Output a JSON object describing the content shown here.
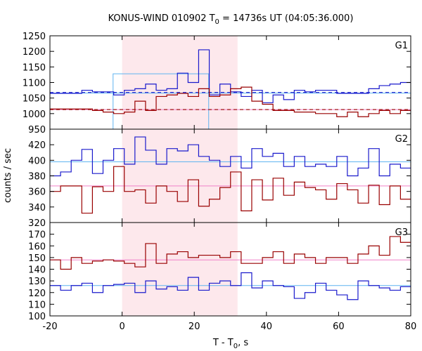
{
  "chart_data": {
    "type": "line",
    "style": "step",
    "title": "KONUS-WIND 010902 T",
    "title_sub": "0",
    "title_rest": " = 14736s UT (04:05:36.000)",
    "xlabel": "T - T",
    "xlabel_sub": "0",
    "xlabel_rest": ", s",
    "ylabel": "counts / sec",
    "xlim": [
      -20,
      80
    ],
    "xticks": [
      -20,
      0,
      20,
      40,
      60,
      80
    ],
    "highlight_interval": [
      0,
      32
    ],
    "colors": {
      "series_blue": "#1a1acc",
      "series_red": "#990000",
      "background_cyan": "#5fb4f0",
      "background_pink": "#f080c8",
      "highlight": "#fde8ec",
      "g1_window": "#5fb4f0"
    },
    "panels": [
      {
        "label": "G1",
        "ylim": [
          950,
          1250
        ],
        "yticks": [
          950,
          1000,
          1050,
          1100,
          1150,
          1200,
          1250
        ],
        "x_start": -20,
        "bin_width": 2.944,
        "series": [
          {
            "color_key": "series_blue",
            "values": [
              1065,
              1065,
              1065,
              1075,
              1070,
              1070,
              1060,
              1075,
              1080,
              1095,
              1075,
              1080,
              1130,
              1100,
              1205,
              1060,
              1095,
              1070,
              1055,
              1075,
              1035,
              1060,
              1045,
              1075,
              1070,
              1075,
              1075,
              1065,
              1065,
              1065,
              1080,
              1090,
              1095,
              1100
            ]
          },
          {
            "color_key": "series_red",
            "values": [
              1015,
              1015,
              1015,
              1015,
              1010,
              1005,
              1000,
              1005,
              1040,
              1010,
              1055,
              1060,
              1065,
              1055,
              1080,
              1055,
              1060,
              1080,
              1085,
              1040,
              1030,
              1010,
              1010,
              1005,
              1005,
              1000,
              1000,
              990,
              1005,
              990,
              1000,
              1010,
              1000,
              1010
            ]
          }
        ],
        "background_lines": [
          {
            "color_key": "background_cyan",
            "value": 1066
          },
          {
            "color_key": "background_pink",
            "value": 1013
          }
        ],
        "dashed_lines": [
          {
            "color_key": "series_blue",
            "value": 1068
          },
          {
            "color_key": "series_red",
            "value": 1013
          }
        ],
        "extra_window": {
          "x": [
            -2.5,
            24
          ],
          "value": 1128,
          "color_key": "g1_window"
        }
      },
      {
        "label": "G2",
        "ylim": [
          320,
          440
        ],
        "yticks": [
          320,
          340,
          360,
          380,
          400,
          420
        ],
        "x_start": -20,
        "bin_width": 2.944,
        "series": [
          {
            "color_key": "series_blue",
            "values": [
              380,
              385,
              400,
              414,
              383,
              400,
              415,
              395,
              430,
              413,
              395,
              415,
              412,
              420,
              405,
              400,
              392,
              405,
              390,
              415,
              405,
              409,
              392,
              405,
              392,
              395,
              392,
              405,
              380,
              390,
              415,
              380,
              395,
              390
            ]
          },
          {
            "color_key": "series_red",
            "values": [
              360,
              367,
              367,
              332,
              366,
              360,
              392,
              360,
              362,
              345,
              367,
              360,
              347,
              375,
              341,
              350,
              365,
              385,
              335,
              375,
              349,
              377,
              355,
              372,
              365,
              362,
              350,
              370,
              362,
              345,
              368,
              343,
              367,
              350
            ]
          }
        ],
        "background_lines": [
          {
            "color_key": "background_cyan",
            "value": 398
          },
          {
            "color_key": "background_pink",
            "value": 367
          }
        ]
      },
      {
        "label": "G3",
        "ylim": [
          100,
          180
        ],
        "yticks": [
          100,
          110,
          120,
          130,
          140,
          150,
          160,
          170
        ],
        "x_start": -20,
        "bin_width": 2.944,
        "series": [
          {
            "color_key": "series_blue",
            "values": [
              126,
              122,
              126,
              128,
              120,
              126,
              127,
              128,
              120,
              130,
              123,
              125,
              122,
              133,
              122,
              128,
              130,
              126,
              137,
              124,
              130,
              126,
              125,
              115,
              120,
              128,
              122,
              118,
              114,
              130,
              126,
              124,
              122,
              125
            ]
          },
          {
            "color_key": "series_red",
            "values": [
              148,
              140,
              150,
              145,
              147,
              148,
              147,
              145,
              142,
              162,
              145,
              153,
              155,
              150,
              152,
              152,
              150,
              155,
              145,
              145,
              150,
              155,
              145,
              153,
              150,
              145,
              150,
              150,
              145,
              153,
              160,
              152,
              168,
              163
            ]
          }
        ],
        "background_lines": [
          {
            "color_key": "background_cyan",
            "value": 126
          },
          {
            "color_key": "background_pink",
            "value": 148
          }
        ]
      }
    ]
  }
}
